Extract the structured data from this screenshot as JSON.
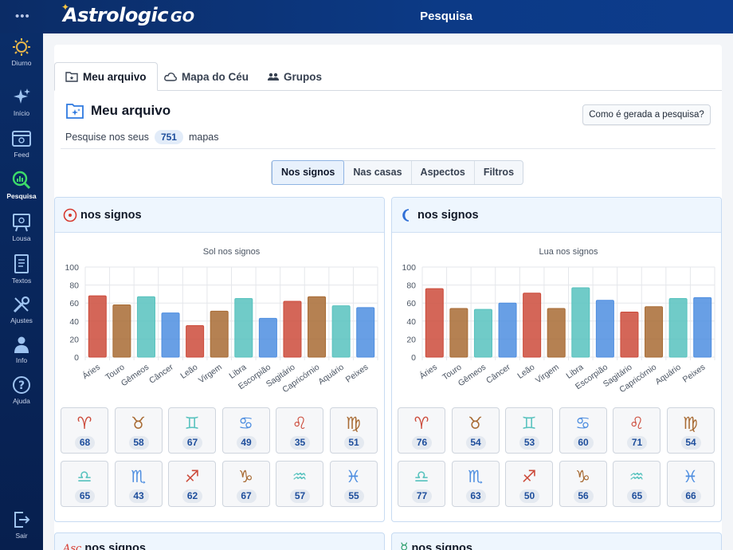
{
  "app": {
    "logo_main": "Astrologic",
    "logo_suffix": "GO",
    "header_title": "Pesquisa",
    "menu_dots": "•••"
  },
  "sidebar": {
    "items": [
      {
        "label": "Diurno",
        "icon": "sun-icon"
      },
      {
        "label": "Início",
        "icon": "sparkles-icon"
      },
      {
        "label": "Feed",
        "icon": "feed-icon"
      },
      {
        "label": "Pesquisa",
        "icon": "search-chart-icon",
        "active": true
      },
      {
        "label": "Lousa",
        "icon": "board-icon"
      },
      {
        "label": "Textos",
        "icon": "document-icon"
      },
      {
        "label": "Ajustes",
        "icon": "tools-icon"
      },
      {
        "label": "Info",
        "icon": "info-person-icon"
      },
      {
        "label": "Ajuda",
        "icon": "help-icon"
      },
      {
        "label": "Sair",
        "icon": "logout-icon"
      }
    ]
  },
  "tabs": [
    {
      "label": "Meu arquivo",
      "icon": "folder-star-icon",
      "active": true
    },
    {
      "label": "Mapa do Céu",
      "icon": "cloud-icon"
    },
    {
      "label": "Grupos",
      "icon": "group-icon"
    }
  ],
  "section": {
    "title": "Meu arquivo",
    "how_button": "Como é gerada a pesquisa?",
    "search_prefix": "Pesquise nos seus",
    "chart_count": "751",
    "search_suffix": "mapas"
  },
  "filter_tabs": [
    {
      "label": "Nos signos",
      "active": true
    },
    {
      "label": "Nas casas"
    },
    {
      "label": "Aspectos"
    },
    {
      "label": "Filtros"
    }
  ],
  "colors": {
    "fire": "#cc4b3b",
    "earth": "#a86b34",
    "air": "#57c2be",
    "water": "#4e8ee0",
    "accent": "#1e4e9c"
  },
  "signs": {
    "names": [
      "Áries",
      "Touro",
      "Gêmeos",
      "Câncer",
      "Leão",
      "Virgem",
      "Libra",
      "Escorpião",
      "Sagitário",
      "Capricórnio",
      "Aquário",
      "Peixes"
    ],
    "glyphs": [
      "♈",
      "♉",
      "♊",
      "♋",
      "♌",
      "♍",
      "♎",
      "♏",
      "♐",
      "♑",
      "♒",
      "♓"
    ],
    "elements": [
      "fire",
      "earth",
      "air",
      "water",
      "fire",
      "earth",
      "air",
      "water",
      "fire",
      "earth",
      "air",
      "water"
    ]
  },
  "cards": [
    {
      "title": "nos signos",
      "planet_icon": "sun-symbol-icon",
      "planet_glyph": "☉"
    },
    {
      "title": "nos signos",
      "planet_icon": "moon-symbol-icon",
      "planet_glyph": "☾"
    },
    {
      "title": "nos signos",
      "planet_icon": "ascendant-icon",
      "planet_glyph": "Asc"
    },
    {
      "title": "nos signos",
      "planet_icon": "mercury-symbol-icon",
      "planet_glyph": "☿"
    }
  ],
  "chart_data": [
    {
      "type": "bar",
      "title": "Sol nos signos",
      "categories": [
        "Áries",
        "Touro",
        "Gêmeos",
        "Câncer",
        "Leão",
        "Virgem",
        "Libra",
        "Escorpião",
        "Sagitário",
        "Capricórnio",
        "Aquário",
        "Peixes"
      ],
      "values": [
        68,
        58,
        67,
        49,
        35,
        51,
        65,
        43,
        62,
        67,
        57,
        55
      ],
      "ylim": [
        0,
        100
      ],
      "yticks": [
        0,
        20,
        40,
        60,
        80,
        100
      ],
      "grid": true,
      "legend": "none"
    },
    {
      "type": "bar",
      "title": "Lua nos signos",
      "categories": [
        "Áries",
        "Touro",
        "Gêmeos",
        "Câncer",
        "Leão",
        "Virgem",
        "Libra",
        "Escorpião",
        "Sagitário",
        "Capricórnio",
        "Aquário",
        "Peixes"
      ],
      "values": [
        76,
        54,
        53,
        60,
        71,
        54,
        77,
        63,
        50,
        56,
        65,
        66
      ],
      "ylim": [
        0,
        100
      ],
      "yticks": [
        0,
        20,
        40,
        60,
        80,
        100
      ],
      "grid": true,
      "legend": "none"
    }
  ]
}
